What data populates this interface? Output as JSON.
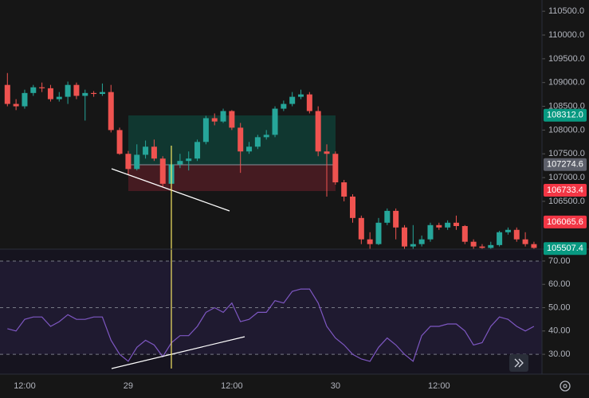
{
  "chart_data": [
    {
      "type": "candlestick",
      "categories": [
        null,
        null,
        "12:00",
        null,
        null,
        null,
        null,
        null,
        null,
        null,
        null,
        null,
        null,
        null,
        "29",
        null,
        null,
        null,
        null,
        null,
        null,
        null,
        null,
        null,
        null,
        null,
        "12:00",
        null,
        null,
        null,
        null,
        null,
        null,
        null,
        null,
        null,
        null,
        null,
        "30",
        null,
        null,
        null,
        null,
        null,
        null,
        null,
        null,
        null,
        null,
        null,
        "12:00",
        null,
        null,
        null,
        null,
        null,
        null,
        null,
        null,
        null,
        null,
        null
      ],
      "open": [
        108950,
        108550,
        108500,
        108780,
        108900,
        108880,
        108650,
        108700,
        108950,
        108720,
        108780,
        108760,
        108800,
        108000,
        107500,
        107180,
        107480,
        107650,
        107400,
        106870,
        107280,
        107350,
        107400,
        107750,
        108250,
        108180,
        108400,
        108050,
        107550,
        107650,
        107850,
        107900,
        108450,
        108550,
        108700,
        108750,
        108400,
        107550,
        107500,
        106900,
        106600,
        106150,
        105700,
        105600,
        106050,
        106300,
        105950,
        105550,
        105600,
        105700,
        106000,
        105950,
        106050,
        105980,
        105650,
        105550,
        105520,
        105580,
        105850,
        105900,
        105700,
        105600
      ],
      "high": [
        109200,
        108650,
        108850,
        108950,
        109000,
        108950,
        108800,
        109020,
        109000,
        108850,
        108820,
        108980,
        108950,
        108050,
        107560,
        107700,
        107780,
        107800,
        107450,
        107350,
        107500,
        107550,
        107800,
        108300,
        108350,
        108450,
        108420,
        108150,
        107750,
        107900,
        108000,
        108500,
        108620,
        108800,
        108850,
        108800,
        108500,
        107700,
        107550,
        106950,
        106650,
        106200,
        105850,
        106150,
        106350,
        106350,
        106000,
        106000,
        105780,
        106050,
        106050,
        106100,
        106200,
        106000,
        105700,
        105600,
        105650,
        105880,
        105950,
        105950,
        105850,
        105650
      ],
      "low": [
        108500,
        108420,
        108450,
        108720,
        108800,
        108600,
        108600,
        108550,
        108650,
        108200,
        108700,
        108720,
        107950,
        107480,
        107050,
        107150,
        107400,
        107350,
        106800,
        106820,
        107200,
        107150,
        107350,
        107700,
        108100,
        108150,
        108000,
        107100,
        107500,
        107600,
        107800,
        107850,
        108400,
        108500,
        108650,
        108350,
        107450,
        106600,
        106850,
        106500,
        106050,
        105600,
        105500,
        105580,
        106000,
        105700,
        105500,
        105500,
        105550,
        105650,
        105900,
        105900,
        105900,
        105600,
        105500,
        105490,
        105490,
        105550,
        105800,
        105650,
        105550,
        105500
      ],
      "close": [
        108550,
        108500,
        108780,
        108900,
        108880,
        108650,
        108700,
        108950,
        108720,
        108780,
        108760,
        108800,
        108000,
        107500,
        107180,
        107480,
        107650,
        107400,
        106870,
        107280,
        107350,
        107400,
        107750,
        108250,
        108180,
        108400,
        108050,
        107550,
        107650,
        107850,
        107900,
        108450,
        108550,
        108700,
        108750,
        108400,
        107550,
        107500,
        106900,
        106600,
        106150,
        105700,
        105600,
        106050,
        106300,
        105950,
        105550,
        105600,
        105700,
        106000,
        105950,
        106050,
        105980,
        105650,
        105550,
        105520,
        105580,
        105850,
        105900,
        105700,
        105600,
        105520
      ],
      "up_color": "#26a69a",
      "down_color": "#ef5350",
      "ylim": [
        105494,
        110737
      ],
      "yticks": [
        {
          "value": 106500,
          "label": "106500.0"
        },
        {
          "value": 107000,
          "label": "107000.0"
        },
        {
          "value": 107500,
          "label": "107500.0"
        },
        {
          "value": 108000,
          "label": "108000.0"
        },
        {
          "value": 108500,
          "label": "108500.0"
        },
        {
          "value": 109000,
          "label": "109000.0"
        },
        {
          "value": 109500,
          "label": "109500.0"
        },
        {
          "value": 110000,
          "label": "110000.0"
        },
        {
          "value": 110500,
          "label": "110500.0"
        }
      ],
      "price_labels": [
        {
          "value": 108312,
          "label": "108312.0",
          "color": "#089981"
        },
        {
          "value": 107274.6,
          "label": "107274.6",
          "color": "#5d606b"
        },
        {
          "value": 106733.4,
          "label": "106733.4",
          "color": "#f23645"
        },
        {
          "value": 106065.6,
          "label": "106065.6",
          "color": "#f23645"
        },
        {
          "value": 105507.4,
          "label": "105507.4",
          "color": "#089981"
        }
      ]
    },
    {
      "type": "line",
      "values": [
        41,
        40,
        45,
        46,
        46,
        42,
        44,
        47,
        45,
        45,
        46,
        46,
        36,
        30,
        27,
        33,
        36,
        34,
        29,
        35,
        38,
        38,
        42,
        48,
        50,
        48,
        52,
        44,
        45,
        48,
        48,
        53,
        52,
        57,
        58,
        58,
        52,
        42,
        37,
        34,
        30,
        28,
        27,
        33,
        37,
        34,
        30,
        27,
        38,
        42,
        42,
        43,
        43,
        40,
        34,
        35,
        42,
        46,
        45,
        42,
        40,
        42
      ],
      "color": "#7e57c2",
      "ylim": [
        21.5,
        75.1
      ],
      "yticks": [
        {
          "value": 30,
          "label": "30.00"
        },
        {
          "value": 40,
          "label": "40.00"
        },
        {
          "value": 50,
          "label": "50.00"
        },
        {
          "value": 60,
          "label": "60.00"
        },
        {
          "value": 70,
          "label": "70.00"
        }
      ],
      "levels": [
        70,
        50,
        30
      ]
    }
  ]
}
